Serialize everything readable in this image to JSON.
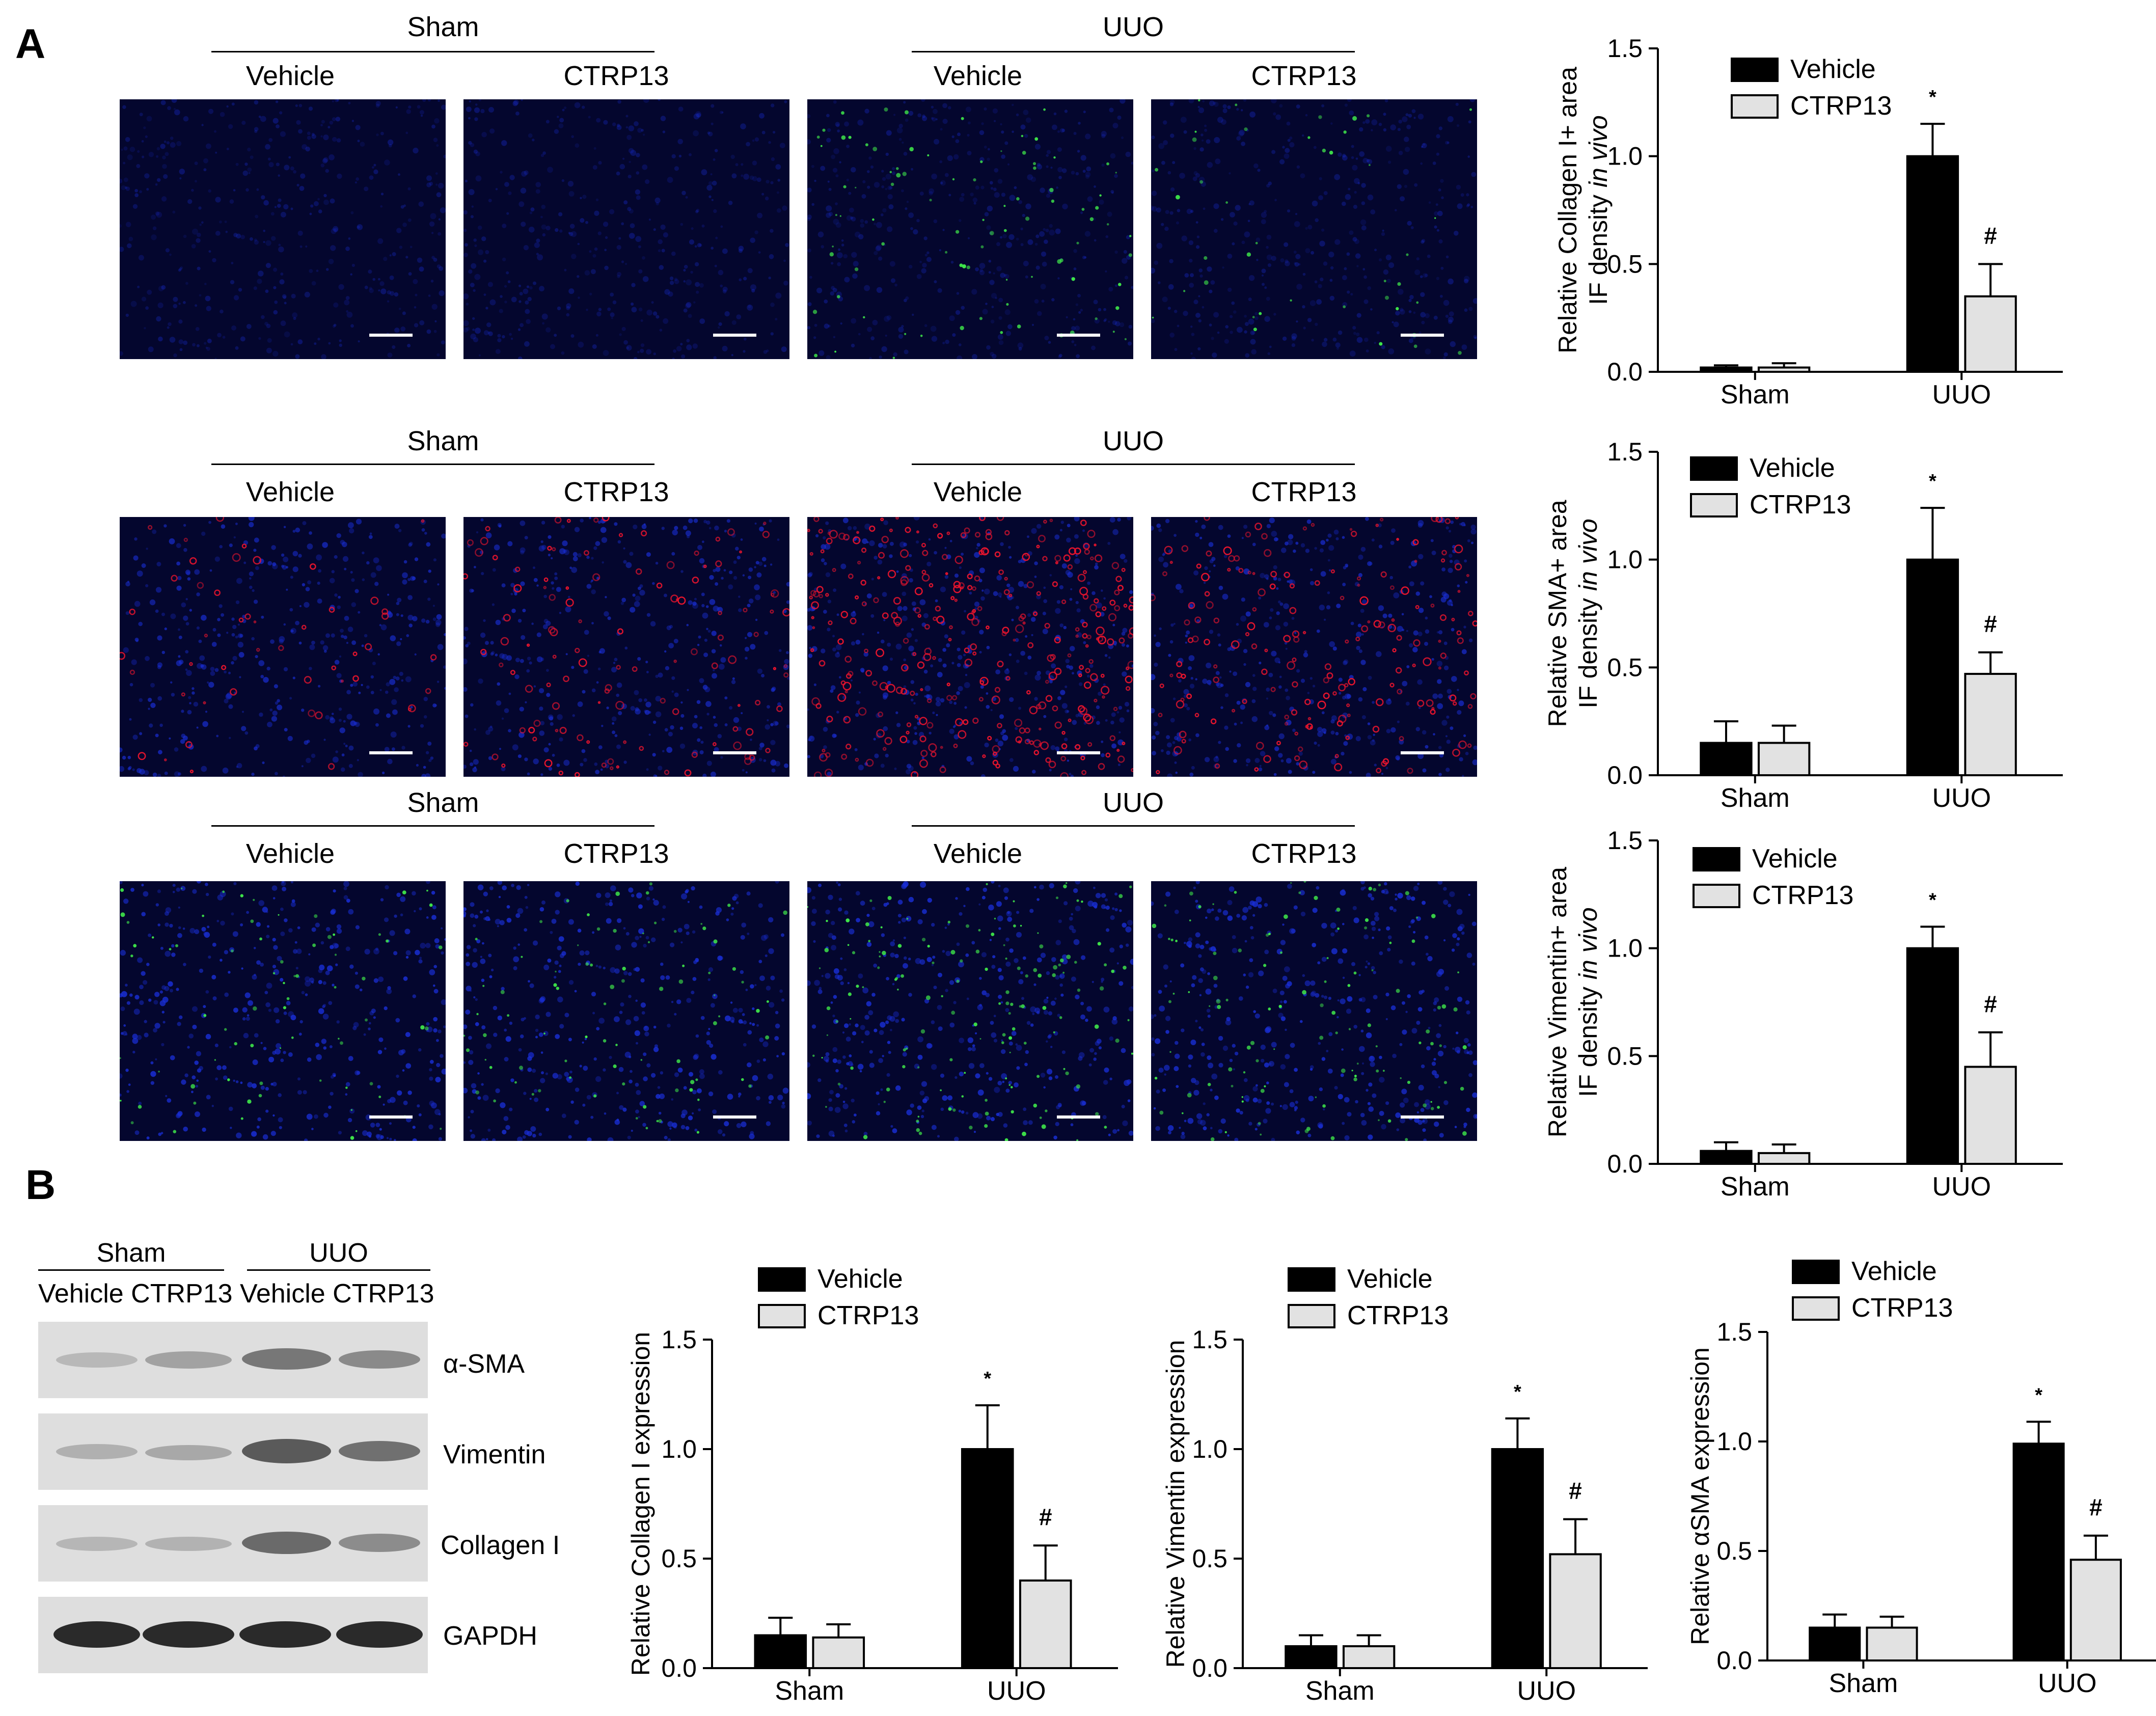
{
  "panel_a_label": "A",
  "panel_b_label": "B",
  "sham_label": "Sham",
  "uuo_label": "UUO",
  "vehicle_label": "Vehicle",
  "ctrp13_label": "CTRP13",
  "blot_labels": [
    "α-SMA",
    "Vimentin",
    "Collagen I",
    "GAPDH"
  ],
  "colors": {
    "vehicle": "#000000",
    "ctrp13": "#e2e2e2",
    "nuclei": "#1a2fd8",
    "green_stain": "#3fe84a",
    "red_stain": "#e8142d"
  },
  "chart_data": [
    {
      "type": "bar",
      "id": "collagen-if",
      "ylabel": "Relative Collagen I+ area",
      "ylabel2_prefix": "IF density ",
      "ylabel2_italic": "in vivo",
      "categories": [
        "Sham",
        "UUO"
      ],
      "ylim": [
        0,
        1.5
      ],
      "yticks": [
        "0.0",
        "0.5",
        "1.0",
        "1.5"
      ],
      "series": [
        {
          "name": "Vehicle",
          "values": [
            0.02,
            1.0
          ],
          "errors": [
            0.01,
            0.15
          ],
          "marks": [
            "",
            "*"
          ]
        },
        {
          "name": "CTRP13",
          "values": [
            0.02,
            0.35
          ],
          "errors": [
            0.02,
            0.15
          ],
          "marks": [
            "",
            "#"
          ]
        }
      ]
    },
    {
      "type": "bar",
      "id": "sma-if",
      "ylabel": "Relative SMA+ area",
      "ylabel2_prefix": "IF density ",
      "ylabel2_italic": "in vivo",
      "categories": [
        "Sham",
        "UUO"
      ],
      "ylim": [
        0,
        1.5
      ],
      "yticks": [
        "0.0",
        "0.5",
        "1.0",
        "1.5"
      ],
      "series": [
        {
          "name": "Vehicle",
          "values": [
            0.15,
            1.0
          ],
          "errors": [
            0.1,
            0.24
          ],
          "marks": [
            "",
            "*"
          ]
        },
        {
          "name": "CTRP13",
          "values": [
            0.15,
            0.47
          ],
          "errors": [
            0.08,
            0.1
          ],
          "marks": [
            "",
            "#"
          ]
        }
      ]
    },
    {
      "type": "bar",
      "id": "vimentin-if",
      "ylabel": "Relative Vimentin+ area",
      "ylabel2_prefix": "IF density ",
      "ylabel2_italic": "in vivo",
      "categories": [
        "Sham",
        "UUO"
      ],
      "ylim": [
        0,
        1.5
      ],
      "yticks": [
        "0.0",
        "0.5",
        "1.0",
        "1.5"
      ],
      "series": [
        {
          "name": "Vehicle",
          "values": [
            0.06,
            1.0
          ],
          "errors": [
            0.04,
            0.1
          ],
          "marks": [
            "",
            "*"
          ]
        },
        {
          "name": "CTRP13",
          "values": [
            0.05,
            0.45
          ],
          "errors": [
            0.04,
            0.16
          ],
          "marks": [
            "",
            "#"
          ]
        }
      ]
    },
    {
      "type": "bar",
      "id": "collagen-wb",
      "ylabel": "Relative Collagen I expression",
      "categories": [
        "Sham",
        "UUO"
      ],
      "ylim": [
        0,
        1.5
      ],
      "yticks": [
        "0.0",
        "0.5",
        "1.0",
        "1.5"
      ],
      "series": [
        {
          "name": "Vehicle",
          "values": [
            0.15,
            1.0
          ],
          "errors": [
            0.08,
            0.2
          ],
          "marks": [
            "",
            "*"
          ]
        },
        {
          "name": "CTRP13",
          "values": [
            0.14,
            0.4
          ],
          "errors": [
            0.06,
            0.16
          ],
          "marks": [
            "",
            "#"
          ]
        }
      ]
    },
    {
      "type": "bar",
      "id": "vimentin-wb",
      "ylabel": "Relative Vimentin expression",
      "categories": [
        "Sham",
        "UUO"
      ],
      "ylim": [
        0,
        1.5
      ],
      "yticks": [
        "0.0",
        "0.5",
        "1.0",
        "1.5"
      ],
      "series": [
        {
          "name": "Vehicle",
          "values": [
            0.1,
            1.0
          ],
          "errors": [
            0.05,
            0.14
          ],
          "marks": [
            "",
            "*"
          ]
        },
        {
          "name": "CTRP13",
          "values": [
            0.1,
            0.52
          ],
          "errors": [
            0.05,
            0.16
          ],
          "marks": [
            "",
            "#"
          ]
        }
      ]
    },
    {
      "type": "bar",
      "id": "asma-wb",
      "ylabel": "Relative αSMA expression",
      "categories": [
        "Sham",
        "UUO"
      ],
      "ylim": [
        0,
        1.5
      ],
      "yticks": [
        "0.0",
        "0.5",
        "1.0",
        "1.5"
      ],
      "series": [
        {
          "name": "Vehicle",
          "values": [
            0.15,
            0.99
          ],
          "errors": [
            0.06,
            0.1
          ],
          "marks": [
            "",
            "*"
          ]
        },
        {
          "name": "CTRP13",
          "values": [
            0.15,
            0.46
          ],
          "errors": [
            0.05,
            0.11
          ],
          "marks": [
            "",
            "#"
          ]
        }
      ]
    }
  ]
}
